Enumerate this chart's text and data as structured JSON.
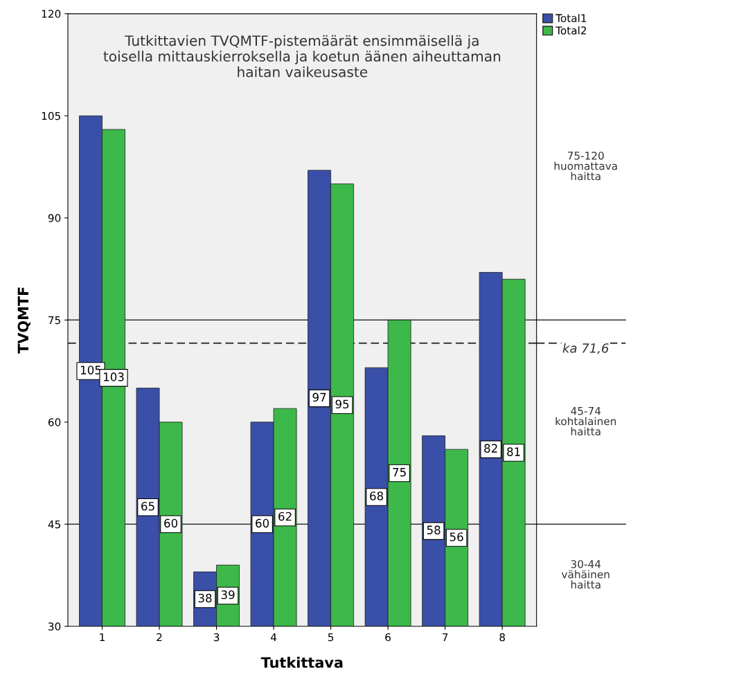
{
  "chart_data": {
    "type": "bar",
    "title": "Tutkittavien TVQMTF-pistemäärät ensimmäisellä ja\ntoisella mittauskierroksella ja koetun äänen aiheuttaman\nhaitan vaikeusaste",
    "xlabel": "Tutkittava",
    "ylabel": "TVQMTF",
    "categories": [
      "1",
      "2",
      "3",
      "4",
      "5",
      "6",
      "7",
      "8"
    ],
    "series": [
      {
        "name": "Total1",
        "color": "#3a4fa8",
        "values": [
          105,
          65,
          38,
          60,
          97,
          68,
          58,
          82
        ]
      },
      {
        "name": "Total2",
        "color": "#3cb94a",
        "values": [
          103,
          60,
          39,
          62,
          95,
          75,
          56,
          81
        ]
      }
    ],
    "ylim": [
      30,
      120
    ],
    "yticks": [
      30,
      45,
      60,
      75,
      90,
      105,
      120
    ],
    "ref_lines": [
      {
        "axis": "y",
        "value": 75,
        "label": null
      },
      {
        "axis": "y",
        "value": 45,
        "label": null
      },
      {
        "axis": "y",
        "value": 71.6,
        "label": "ka 71,6",
        "line_style": "dashed"
      }
    ],
    "annotations": [
      "75-120\nhuomattava\nhaitta",
      "45-74\nkohtalainen\nhaitta",
      "30-44\nvähäinen\nhaitta"
    ],
    "data_labels": true,
    "grid": false,
    "legend": "top right"
  }
}
